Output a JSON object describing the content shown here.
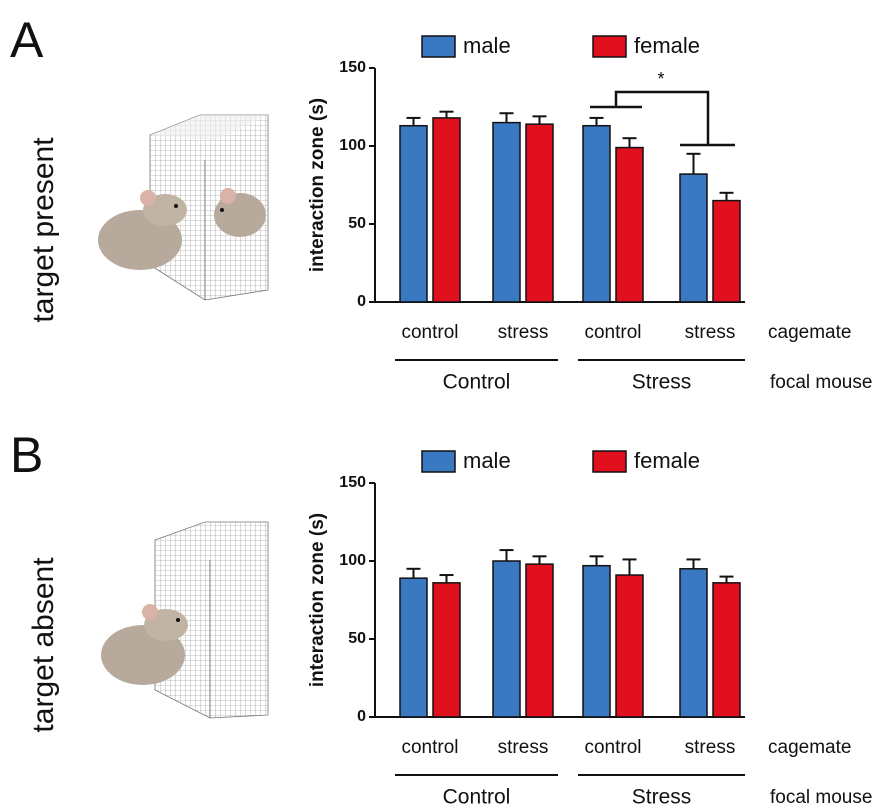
{
  "chart_data": [
    {
      "type": "bar",
      "panel": "A",
      "condition": "target present",
      "y_label": "interaction zone  (s)",
      "categories": [
        "control",
        "stress",
        "control",
        "stress"
      ],
      "category_axis_label": "cagemate",
      "groups": [
        "Control",
        "Stress"
      ],
      "group_axis_label": "focal mouse",
      "series": [
        {
          "name": "male",
          "color": "#3a78c2",
          "values": [
            113,
            115,
            113,
            82
          ],
          "errors": [
            5,
            6,
            5,
            13
          ]
        },
        {
          "name": "female",
          "color": "#e0101f",
          "values": [
            118,
            114,
            99,
            65
          ],
          "errors": [
            4,
            5,
            6,
            5
          ]
        }
      ],
      "ylim": [
        0,
        150
      ],
      "yticks": [
        0,
        50,
        100,
        150
      ],
      "annotation": "*"
    },
    {
      "type": "bar",
      "panel": "B",
      "condition": "target absent",
      "y_label": "interaction zone  (s)",
      "categories": [
        "control",
        "stress",
        "control",
        "stress"
      ],
      "category_axis_label": "cagemate",
      "groups": [
        "Control",
        "Stress"
      ],
      "group_axis_label": "focal mouse",
      "series": [
        {
          "name": "male",
          "color": "#3a78c2",
          "values": [
            89,
            100,
            97,
            95
          ],
          "errors": [
            6,
            7,
            6,
            6
          ]
        },
        {
          "name": "female",
          "color": "#e0101f",
          "values": [
            86,
            98,
            91,
            86
          ],
          "errors": [
            5,
            5,
            10,
            4
          ]
        }
      ],
      "ylim": [
        0,
        150
      ],
      "yticks": [
        0,
        50,
        100,
        150
      ]
    }
  ]
}
